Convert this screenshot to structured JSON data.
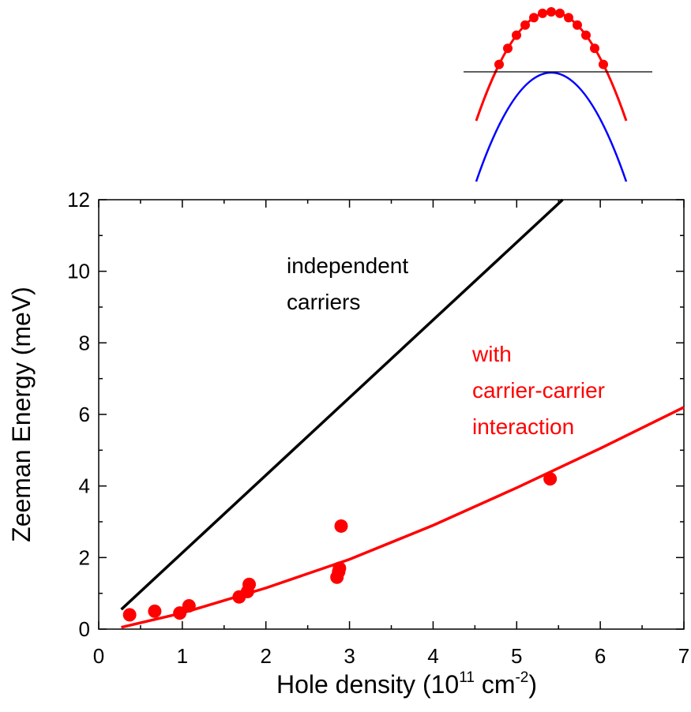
{
  "chart_data": {
    "type": "scatter",
    "xlabel": [
      "Hole density (10",
      "11",
      " cm",
      "-2",
      ")"
    ],
    "ylabel": "Zeeman Energy (meV)",
    "xlim": [
      0,
      7
    ],
    "xticks": [
      0,
      1,
      2,
      3,
      4,
      5,
      6,
      7
    ],
    "ylim": [
      0,
      12
    ],
    "yticks": [
      0,
      2,
      4,
      6,
      8,
      10,
      12
    ],
    "series": [
      {
        "type": "scatter",
        "color": "#ff0000",
        "x": [
          0.37,
          0.67,
          0.97,
          1.08,
          1.68,
          1.78,
          1.8,
          2.85,
          2.87,
          2.88,
          2.9,
          5.4
        ],
        "values": [
          0.4,
          0.5,
          0.45,
          0.65,
          0.9,
          1.05,
          1.25,
          1.45,
          1.6,
          1.7,
          2.88,
          4.2
        ]
      },
      {
        "type": "line",
        "color": "#000000",
        "x": [
          0.27,
          5.55
        ],
        "values": [
          0.55,
          12
        ]
      },
      {
        "type": "line",
        "color": "#ff0000",
        "x": [
          0.27,
          1,
          2,
          3,
          4,
          5,
          6,
          7
        ],
        "values": [
          0.05,
          0.45,
          1.15,
          1.95,
          2.9,
          3.95,
          5.05,
          6.2
        ]
      }
    ],
    "annotations": [
      {
        "lines": [
          "independent",
          "carriers"
        ],
        "color": "#000000"
      },
      {
        "lines": [
          "with",
          "carrier-carrier",
          "interaction"
        ],
        "color": "#ff0000"
      }
    ]
  }
}
